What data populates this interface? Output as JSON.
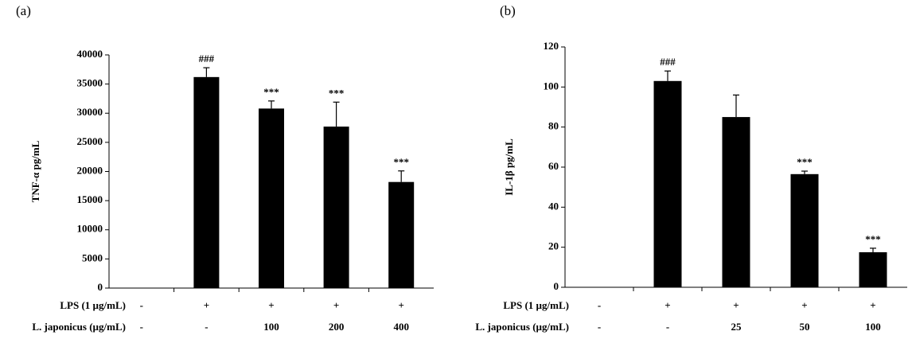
{
  "chart_data": [
    {
      "type": "bar",
      "panel_label": "(a)",
      "ylabel": "TNF-α pg/mL",
      "color": "#000000",
      "values": [
        null,
        36200,
        30800,
        27700,
        18200
      ],
      "errors": [
        null,
        1600,
        1300,
        4200,
        1900
      ],
      "annotations": [
        null,
        "###",
        "***",
        "***",
        "***"
      ],
      "rows": [
        {
          "label": "LPS (1 µg/mL)",
          "values": [
            "-",
            "+",
            "+",
            "+",
            "+"
          ]
        },
        {
          "label": "L. japonicus (µg/mL)",
          "values": [
            "-",
            "-",
            "100",
            "200",
            "400"
          ]
        }
      ],
      "ylim": [
        0,
        40000
      ],
      "yticks": [
        0,
        5000,
        10000,
        15000,
        20000,
        25000,
        30000,
        35000,
        40000
      ]
    },
    {
      "type": "bar",
      "panel_label": "(b)",
      "ylabel": "IL-1β pg/mL",
      "color": "#000000",
      "values": [
        null,
        103,
        85,
        56.5,
        17.5
      ],
      "errors": [
        null,
        5,
        11,
        1.5,
        2
      ],
      "annotations": [
        null,
        "###",
        null,
        "***",
        "***"
      ],
      "rows": [
        {
          "label": "LPS (1 µg/mL)",
          "values": [
            "-",
            "+",
            "+",
            "+",
            "+"
          ]
        },
        {
          "label": "L. japonicus (µg/mL)",
          "values": [
            "-",
            "-",
            "25",
            "50",
            "100"
          ]
        }
      ],
      "ylim": [
        0,
        120
      ],
      "yticks": [
        0,
        20,
        40,
        60,
        80,
        100,
        120
      ]
    }
  ]
}
